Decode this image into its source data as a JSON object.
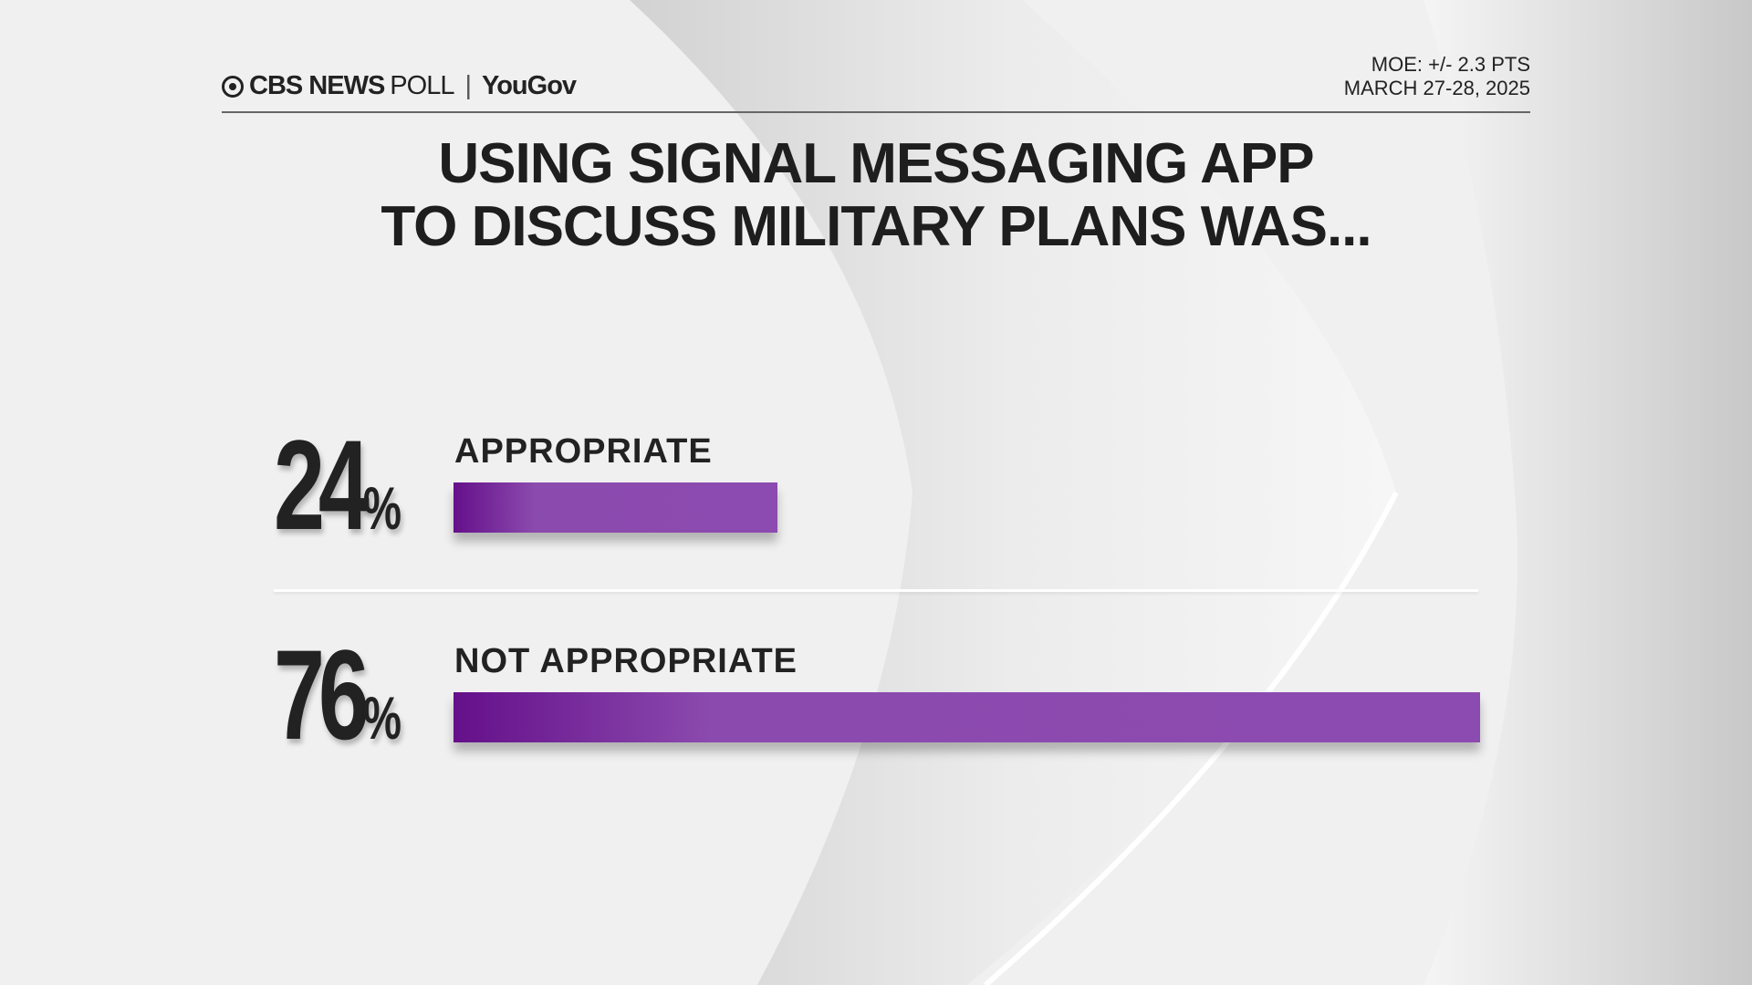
{
  "header": {
    "logo_cbs": "CBS NEWS",
    "logo_poll": "POLL",
    "logo_partner": "YouGov",
    "moe": "MOE: +/- 2.3 PTS",
    "date": "MARCH 27-28, 2025"
  },
  "chart_data": {
    "type": "bar",
    "orientation": "horizontal",
    "title_lines": [
      "USING SIGNAL MESSAGING APP",
      "TO DISCUSS MILITARY PLANS WAS..."
    ],
    "categories": [
      "APPROPRIATE",
      "NOT APPROPRIATE"
    ],
    "values": [
      24,
      76
    ],
    "value_labels": [
      "24",
      "76"
    ],
    "unit": "%",
    "xlim": [
      0,
      100
    ],
    "grid": false,
    "bar_color_start": "#65108a",
    "bar_color_end": "#8c4bb0"
  }
}
